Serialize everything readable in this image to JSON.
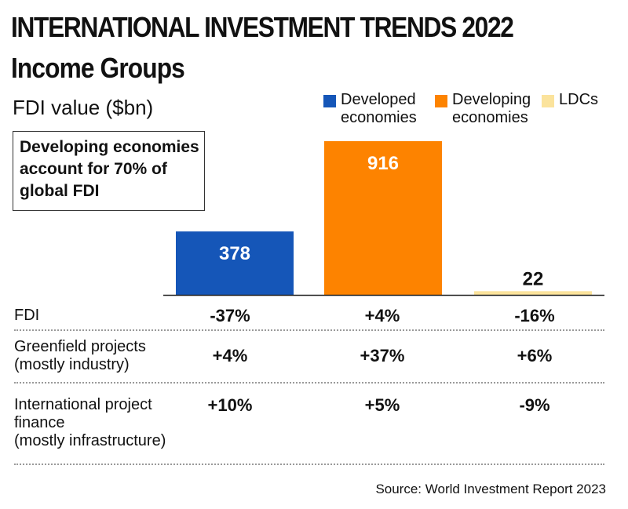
{
  "header": {
    "title": "INTERNATIONAL INVESTMENT TRENDS 2022",
    "subtitle": "Income Groups",
    "unit_label": "FDI value ($bn)"
  },
  "callout": {
    "text": "Developing economies\naccount for 70% of\nglobal FDI"
  },
  "legend": [
    {
      "label": "Developed\neconomies",
      "color": "#1556b8"
    },
    {
      "label": "Developing\neconomies",
      "color": "#fd8300"
    },
    {
      "label": "LDCs",
      "color": "#fbe39c"
    }
  ],
  "chart_data": {
    "type": "bar",
    "title": "INTERNATIONAL INVESTMENT TRENDS 2022 — Income Groups",
    "ylabel": "FDI value ($bn)",
    "categories": [
      "Developed economies",
      "Developing economies",
      "LDCs"
    ],
    "values": [
      378,
      916,
      22
    ],
    "value_labels": [
      "378",
      "916",
      "22"
    ],
    "colors": [
      "#1556b8",
      "#fd8300",
      "#fbe39c"
    ],
    "ylim": [
      0,
      916
    ]
  },
  "table": {
    "rows": [
      {
        "label": "FDI",
        "values": [
          "-37%",
          "+4%",
          "-16%"
        ]
      },
      {
        "label": "Greenfield projects\n(mostly industry)",
        "values": [
          "+4%",
          "+37%",
          "+6%"
        ]
      },
      {
        "label": "International project\nfinance\n(mostly infrastructure)",
        "values": [
          "+10%",
          "+5%",
          "-9%"
        ]
      }
    ]
  },
  "footer": {
    "source": "Source: World Investment Report 2023"
  }
}
